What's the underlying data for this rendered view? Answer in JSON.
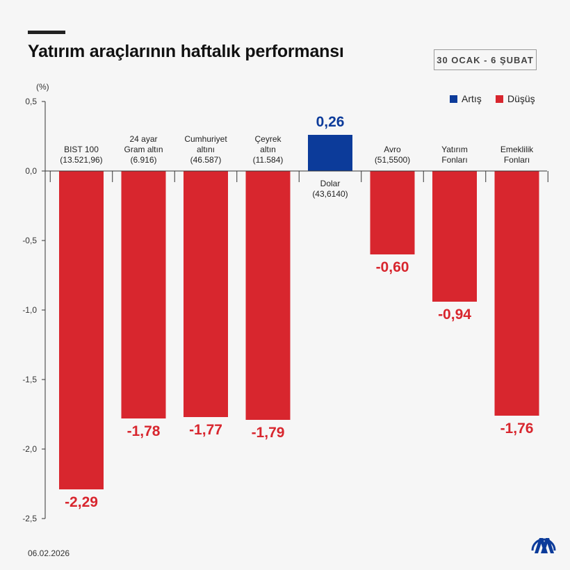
{
  "header": {
    "title": "Yatırım araçlarının haftalık performansı",
    "date_range": "30 OCAK - 6 ŞUBAT"
  },
  "footer": {
    "date": "06.02.2026"
  },
  "logo": {
    "text": "AA"
  },
  "colors": {
    "increase": "#0c3b9a",
    "decrease": "#d8262e",
    "axis": "#333333"
  },
  "chart_data": {
    "type": "bar",
    "unit_label": "(%)",
    "ylim": [
      -2.5,
      0.5
    ],
    "yticks": [
      "0,5",
      "0,0",
      "-0,5",
      "-1,0",
      "-1,5",
      "-2,0",
      "-2,5"
    ],
    "ytick_values": [
      0.5,
      0.0,
      -0.5,
      -1.0,
      -1.5,
      -2.0,
      -2.5
    ],
    "legend": {
      "position": "top-right",
      "items": [
        "Artış",
        "Düşüş"
      ]
    },
    "categories": [
      {
        "name_lines": [
          "BIST 100"
        ],
        "price": "(13.521,96)",
        "value": -2.29,
        "value_label": "-2,29"
      },
      {
        "name_lines": [
          "24 ayar",
          "Gram altın"
        ],
        "price": "(6.916)",
        "value": -1.78,
        "value_label": "-1,78"
      },
      {
        "name_lines": [
          "Cumhuriyet",
          "altını"
        ],
        "price": "(46.587)",
        "value": -1.77,
        "value_label": "-1,77"
      },
      {
        "name_lines": [
          "Çeyrek",
          "altın"
        ],
        "price": "(11.584)",
        "value": -1.79,
        "value_label": "-1,79"
      },
      {
        "name_lines": [
          "Dolar"
        ],
        "price": "(43,6140)",
        "value": 0.26,
        "value_label": "0,26"
      },
      {
        "name_lines": [
          "Avro"
        ],
        "price": "(51,5500)",
        "value": -0.6,
        "value_label": "-0,60"
      },
      {
        "name_lines": [
          "Yatırım",
          "Fonları"
        ],
        "price": "",
        "value": -0.94,
        "value_label": "-0,94"
      },
      {
        "name_lines": [
          "Emeklilik",
          "Fonları"
        ],
        "price": "",
        "value": -1.76,
        "value_label": "-1,76"
      }
    ]
  }
}
